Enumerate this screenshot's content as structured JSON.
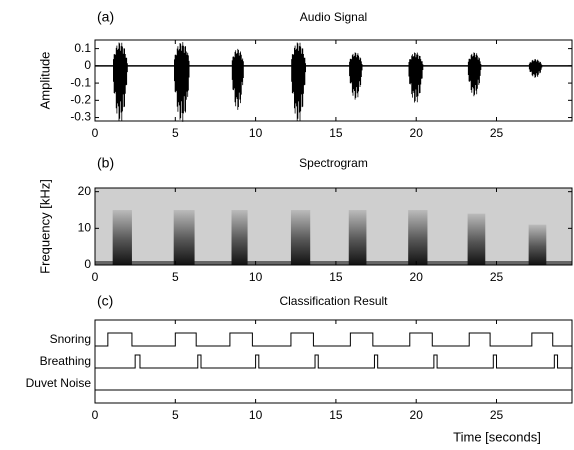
{
  "chart_data": [
    {
      "type": "waveform",
      "panel": "(a)",
      "title": "Audio Signal",
      "ylabel": "Amplitude",
      "xlim": [
        0,
        29.7
      ],
      "xticks": [
        0,
        5,
        10,
        15,
        20,
        25
      ],
      "ylim": [
        -0.32,
        0.15
      ],
      "yticks": [
        0.1,
        0,
        -0.1,
        -0.2,
        -0.3
      ],
      "bursts": [
        {
          "start": 1.1,
          "end": 2.3,
          "max": 0.14,
          "min": -0.33
        },
        {
          "start": 4.9,
          "end": 6.2,
          "max": 0.14,
          "min": -0.33
        },
        {
          "start": 8.5,
          "end": 9.5,
          "max": 0.1,
          "min": -0.26
        },
        {
          "start": 12.2,
          "end": 13.4,
          "max": 0.14,
          "min": -0.33
        },
        {
          "start": 15.8,
          "end": 16.9,
          "max": 0.08,
          "min": -0.2
        },
        {
          "start": 19.5,
          "end": 20.7,
          "max": 0.08,
          "min": -0.22
        },
        {
          "start": 23.2,
          "end": 24.3,
          "max": 0.08,
          "min": -0.18
        },
        {
          "start": 27.0,
          "end": 28.1,
          "max": 0.04,
          "min": -0.07
        }
      ]
    },
    {
      "type": "spectrogram",
      "panel": "(b)",
      "title": "Spectrogram",
      "ylabel": "Frequency [kHz]",
      "xlim": [
        0,
        29.7
      ],
      "xticks": [
        0,
        5,
        10,
        15,
        20,
        25
      ],
      "ylim": [
        0,
        21
      ],
      "yticks": [
        0,
        10,
        20
      ],
      "bursts": [
        {
          "start": 1.1,
          "end": 2.3,
          "max_freq": 15
        },
        {
          "start": 4.9,
          "end": 6.2,
          "max_freq": 15
        },
        {
          "start": 8.5,
          "end": 9.5,
          "max_freq": 15
        },
        {
          "start": 12.2,
          "end": 13.4,
          "max_freq": 15
        },
        {
          "start": 15.8,
          "end": 16.9,
          "max_freq": 15
        },
        {
          "start": 19.5,
          "end": 20.7,
          "max_freq": 15
        },
        {
          "start": 23.2,
          "end": 24.3,
          "max_freq": 14
        },
        {
          "start": 27.0,
          "end": 28.1,
          "max_freq": 11
        }
      ]
    },
    {
      "type": "step",
      "panel": "(c)",
      "title": "Classification Result",
      "xlabel": "Time [seconds]",
      "xlim": [
        0,
        29.7
      ],
      "xticks": [
        0,
        5,
        10,
        15,
        20,
        25
      ],
      "classes": [
        {
          "name": "Snoring",
          "intervals": [
            [
              0.8,
              2.3
            ],
            [
              5.0,
              6.3
            ],
            [
              8.4,
              9.8
            ],
            [
              12.2,
              13.6
            ],
            [
              15.9,
              17.3
            ],
            [
              19.6,
              21.0
            ],
            [
              23.3,
              24.6
            ],
            [
              27.2,
              28.5
            ]
          ]
        },
        {
          "name": "Breathing",
          "intervals": [
            [
              2.5,
              2.8
            ],
            [
              6.4,
              6.6
            ],
            [
              10.0,
              10.2
            ],
            [
              13.7,
              13.9
            ],
            [
              17.4,
              17.6
            ],
            [
              21.1,
              21.3
            ],
            [
              24.8,
              25.0
            ],
            [
              28.6,
              28.8
            ]
          ]
        },
        {
          "name": "Duvet Noise",
          "intervals": []
        }
      ]
    }
  ]
}
